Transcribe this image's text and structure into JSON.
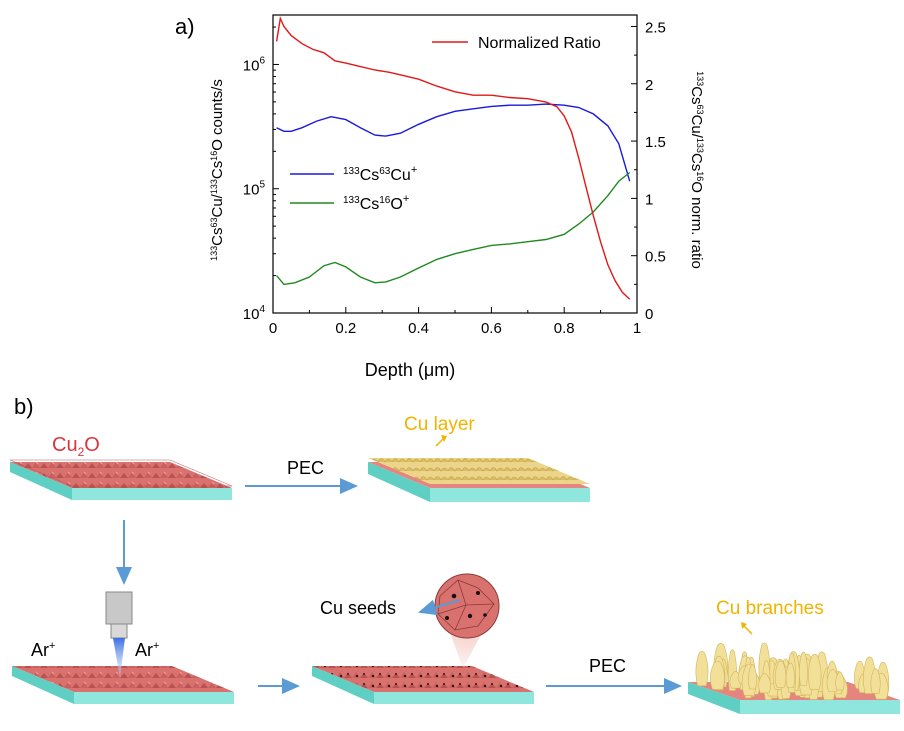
{
  "panel_a_label": "a)",
  "panel_b_label": "b)",
  "chart_data": {
    "type": "line",
    "x_label": "Depth (μm)",
    "x_range": [
      0,
      1
    ],
    "x_ticks": [
      "0",
      "0.2",
      "0.4",
      "0.6",
      "0.8",
      "1"
    ],
    "left_axis": {
      "label": "133Cs63Cu/133Cs16O counts/s",
      "scale": "log",
      "range": [
        10000,
        2500000
      ],
      "tick_labels": [
        "10^4",
        "10^5",
        "10^6"
      ]
    },
    "right_axis": {
      "label": "133Cs63Cu/133Cs16O norm. ratio",
      "scale": "linear",
      "range": [
        0,
        2.6
      ],
      "tick_labels": [
        "0",
        "0.5",
        "1",
        "1.5",
        "2",
        "2.5"
      ]
    },
    "legend_top": "Normalized Ratio",
    "series": [
      {
        "name": "133Cs63Cu+",
        "axis": "left",
        "color": "#1a1adb",
        "x": [
          0.01,
          0.03,
          0.05,
          0.08,
          0.12,
          0.16,
          0.2,
          0.24,
          0.28,
          0.31,
          0.35,
          0.4,
          0.45,
          0.5,
          0.55,
          0.6,
          0.65,
          0.7,
          0.75,
          0.8,
          0.84,
          0.88,
          0.92,
          0.95,
          0.98
        ],
        "y": [
          310000,
          290000,
          290000,
          310000,
          350000,
          380000,
          360000,
          310000,
          270000,
          265000,
          280000,
          330000,
          380000,
          420000,
          440000,
          460000,
          470000,
          470000,
          480000,
          470000,
          450000,
          400000,
          320000,
          230000,
          115000
        ]
      },
      {
        "name": "133Cs16O+",
        "axis": "left",
        "color": "#1f8a1f",
        "x": [
          0.01,
          0.03,
          0.06,
          0.1,
          0.14,
          0.17,
          0.2,
          0.24,
          0.28,
          0.31,
          0.35,
          0.4,
          0.45,
          0.5,
          0.55,
          0.6,
          0.65,
          0.7,
          0.75,
          0.8,
          0.84,
          0.88,
          0.92,
          0.95,
          0.98
        ],
        "y": [
          20000,
          17000,
          17500,
          19500,
          24000,
          25500,
          23500,
          19500,
          17500,
          17800,
          19500,
          23000,
          27000,
          30000,
          32500,
          35000,
          36000,
          37500,
          39000,
          43000,
          52000,
          65000,
          88000,
          115000,
          135000
        ]
      },
      {
        "name": "Normalized Ratio",
        "axis": "right",
        "color": "#e01818",
        "x": [
          0.01,
          0.02,
          0.03,
          0.05,
          0.08,
          0.11,
          0.14,
          0.17,
          0.2,
          0.24,
          0.28,
          0.32,
          0.36,
          0.4,
          0.45,
          0.5,
          0.55,
          0.6,
          0.65,
          0.7,
          0.75,
          0.78,
          0.8,
          0.82,
          0.84,
          0.86,
          0.88,
          0.9,
          0.92,
          0.94,
          0.96,
          0.98
        ],
        "y": [
          2.37,
          2.57,
          2.5,
          2.42,
          2.35,
          2.3,
          2.27,
          2.2,
          2.18,
          2.15,
          2.12,
          2.1,
          2.07,
          2.04,
          1.98,
          1.93,
          1.9,
          1.9,
          1.88,
          1.87,
          1.84,
          1.8,
          1.72,
          1.58,
          1.35,
          1.1,
          0.85,
          0.62,
          0.42,
          0.28,
          0.18,
          0.12
        ]
      }
    ]
  },
  "diagram": {
    "cu2o_label": "Cu2O",
    "cu_layer_label": "Cu layer",
    "pec_top": "PEC",
    "pec_bottom": "PEC",
    "ar_left": "Ar+",
    "ar_right": "Ar+",
    "cu_seeds_label": "Cu seeds",
    "cu_branches_label": "Cu branches"
  }
}
